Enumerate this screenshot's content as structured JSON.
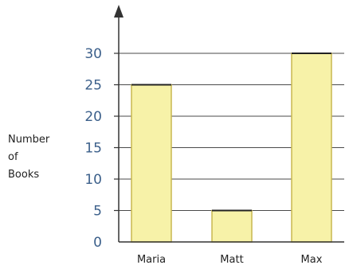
{
  "chart_data": {
    "type": "bar",
    "categories": [
      "Maria",
      "Matt",
      "Max"
    ],
    "values": [
      25,
      5,
      30
    ],
    "ylabel_lines": [
      "Number",
      "of",
      "Books"
    ],
    "xlabel": "",
    "yticks": [
      "0",
      "5",
      "10",
      "15",
      "20",
      "25",
      "30"
    ],
    "ylim": [
      0,
      35
    ],
    "grid": true,
    "colors": {
      "bar_fill": "#f7f2a8",
      "bar_stroke": "#c9b850",
      "grid": "#4a4a4a",
      "axis": "#333333",
      "tick_text": "#3b5f8a"
    }
  }
}
